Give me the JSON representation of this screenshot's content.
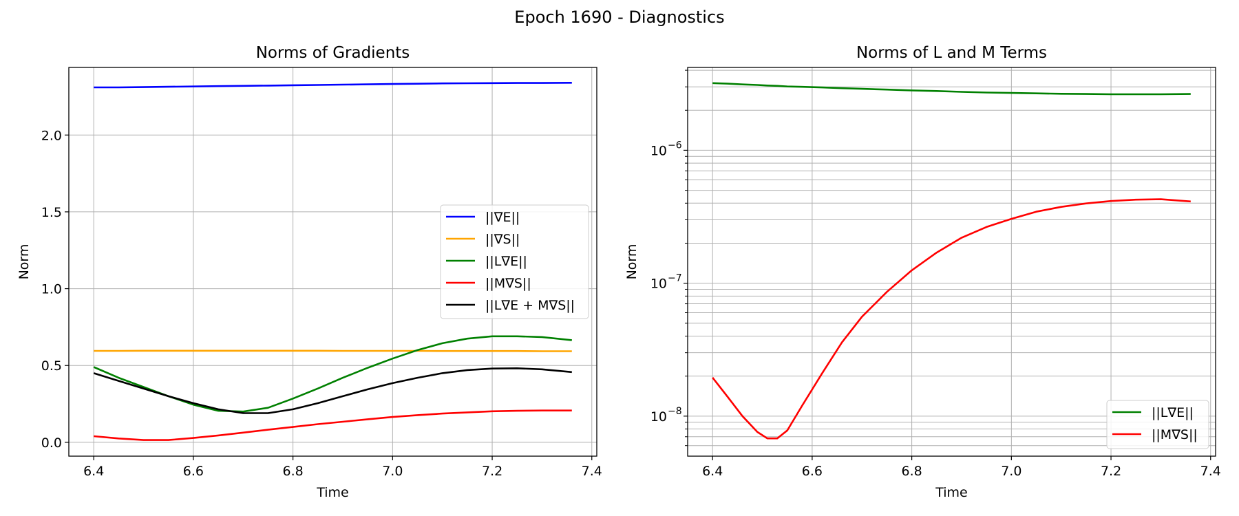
{
  "suptitle": "Epoch 1690 - Diagnostics",
  "chart_data": [
    {
      "type": "line",
      "title": "Norms of Gradients",
      "xlabel": "Time",
      "ylabel": "Norm",
      "xlim": [
        6.35,
        7.41
      ],
      "ylim": [
        -0.09,
        2.44
      ],
      "y_scale": "linear",
      "grid": true,
      "legend_placement": "center-right",
      "x_ticks": [
        6.4,
        6.6,
        6.8,
        7.0,
        7.2,
        7.4
      ],
      "x_tick_labels": [
        "6.4",
        "6.6",
        "6.8",
        "7.0",
        "7.2",
        "7.4"
      ],
      "y_ticks": [
        0.0,
        0.5,
        1.0,
        1.5,
        2.0
      ],
      "y_tick_labels": [
        "0.0",
        "0.5",
        "1.0",
        "1.5",
        "2.0"
      ],
      "x": [
        6.4,
        6.45,
        6.5,
        6.55,
        6.6,
        6.65,
        6.7,
        6.75,
        6.8,
        6.85,
        6.9,
        6.95,
        7.0,
        7.05,
        7.1,
        7.15,
        7.2,
        7.25,
        7.3,
        7.36
      ],
      "series": [
        {
          "name": "||∇E||",
          "color": "#0000ff",
          "values": [
            2.31,
            2.31,
            2.312,
            2.314,
            2.316,
            2.318,
            2.32,
            2.322,
            2.324,
            2.326,
            2.328,
            2.33,
            2.332,
            2.334,
            2.336,
            2.337,
            2.338,
            2.339,
            2.339,
            2.34
          ]
        },
        {
          "name": "||∇S||",
          "color": "#ffa500",
          "values": [
            0.595,
            0.595,
            0.596,
            0.596,
            0.596,
            0.596,
            0.596,
            0.596,
            0.596,
            0.596,
            0.595,
            0.595,
            0.595,
            0.595,
            0.594,
            0.594,
            0.594,
            0.594,
            0.593,
            0.593
          ]
        },
        {
          "name": "||L∇E||",
          "color": "#008000",
          "values": [
            0.49,
            0.42,
            0.36,
            0.3,
            0.245,
            0.205,
            0.2,
            0.225,
            0.285,
            0.35,
            0.42,
            0.485,
            0.545,
            0.6,
            0.645,
            0.675,
            0.69,
            0.69,
            0.685,
            0.665
          ]
        },
        {
          "name": "||M∇S||",
          "color": "#ff0000",
          "values": [
            0.04,
            0.025,
            0.015,
            0.015,
            0.028,
            0.045,
            0.063,
            0.082,
            0.1,
            0.118,
            0.134,
            0.15,
            0.165,
            0.177,
            0.187,
            0.195,
            0.202,
            0.205,
            0.207,
            0.207
          ]
        },
        {
          "name": "||L∇E + M∇S||",
          "color": "#000000",
          "values": [
            0.45,
            0.4,
            0.35,
            0.3,
            0.255,
            0.215,
            0.19,
            0.19,
            0.215,
            0.255,
            0.3,
            0.345,
            0.385,
            0.42,
            0.45,
            0.47,
            0.48,
            0.482,
            0.475,
            0.457
          ]
        }
      ]
    },
    {
      "type": "line",
      "title": "Norms of L and M Terms",
      "xlabel": "Time",
      "ylabel": "Norm",
      "xlim": [
        6.35,
        7.41
      ],
      "ylim": [
        5e-09,
        4.2e-06
      ],
      "y_scale": "log",
      "grid": true,
      "legend_placement": "lower-right",
      "x_ticks": [
        6.4,
        6.6,
        6.8,
        7.0,
        7.2,
        7.4
      ],
      "x_tick_labels": [
        "6.4",
        "6.6",
        "6.8",
        "7.0",
        "7.2",
        "7.4"
      ],
      "y_ticks": [
        1e-08,
        1e-07,
        1e-06
      ],
      "y_tick_labels": [
        "10",
        "10",
        "10"
      ],
      "y_tick_exponents": [
        "−8",
        "−7",
        "−6"
      ],
      "x": [
        6.4,
        6.43,
        6.46,
        6.49,
        6.51,
        6.53,
        6.55,
        6.58,
        6.62,
        6.66,
        6.7,
        6.75,
        6.8,
        6.85,
        6.9,
        6.95,
        7.0,
        7.05,
        7.1,
        7.15,
        7.2,
        7.25,
        7.3,
        7.36
      ],
      "series": [
        {
          "name": "||L∇E||",
          "color": "#008000",
          "values": [
            3.2e-06,
            3.17e-06,
            3.13e-06,
            3.1e-06,
            3.07e-06,
            3.05e-06,
            3.02e-06,
            3e-06,
            2.97e-06,
            2.93e-06,
            2.9e-06,
            2.86e-06,
            2.82e-06,
            2.79e-06,
            2.75e-06,
            2.72e-06,
            2.7e-06,
            2.68e-06,
            2.66e-06,
            2.65e-06,
            2.64e-06,
            2.64e-06,
            2.64e-06,
            2.65e-06
          ]
        },
        {
          "name": "||M∇S||",
          "color": "#ff0000",
          "values": [
            1.95e-08,
            1.4e-08,
            1e-08,
            7.6e-09,
            6.8e-09,
            6.8e-09,
            7.8e-09,
            1.2e-08,
            2.1e-08,
            3.6e-08,
            5.6e-08,
            8.6e-08,
            1.25e-07,
            1.7e-07,
            2.2e-07,
            2.65e-07,
            3.05e-07,
            3.45e-07,
            3.75e-07,
            3.98e-07,
            4.15e-07,
            4.25e-07,
            4.28e-07,
            4.12e-07
          ]
        }
      ]
    }
  ]
}
